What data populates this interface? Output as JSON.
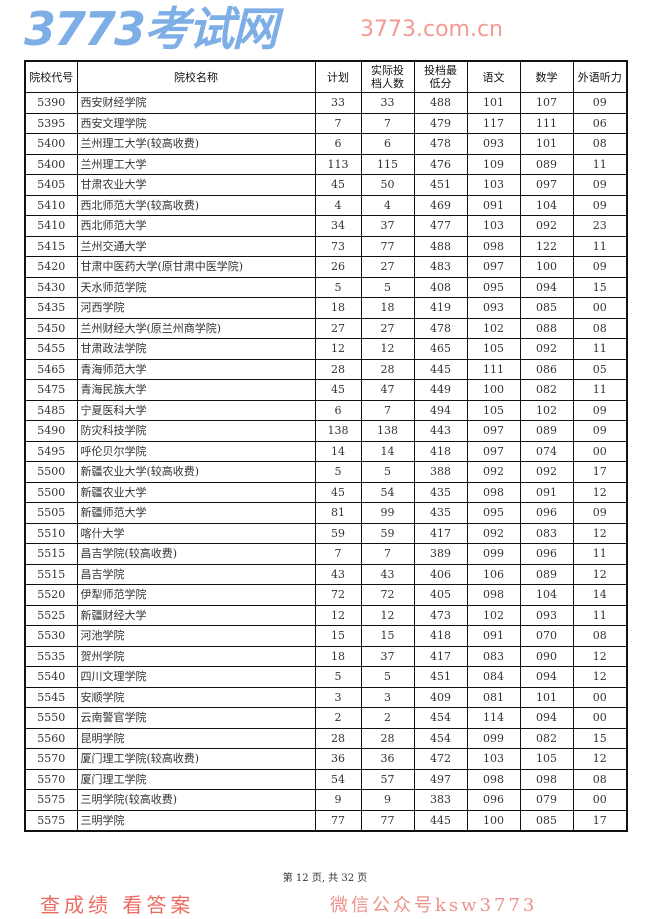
{
  "table": {
    "headers": [
      "院校代号",
      "院校名称",
      "计划",
      "实际投档人数",
      "投档最低分",
      "语文",
      "数学",
      "外语听力"
    ],
    "rows": [
      [
        "5390",
        "西安财经学院",
        "33",
        "33",
        "488",
        "101",
        "107",
        "09"
      ],
      [
        "5395",
        "西安文理学院",
        "7",
        "7",
        "479",
        "117",
        "111",
        "06"
      ],
      [
        "5400",
        "兰州理工大学(较高收费)",
        "6",
        "6",
        "478",
        "093",
        "101",
        "08"
      ],
      [
        "5400",
        "兰州理工大学",
        "113",
        "115",
        "476",
        "109",
        "089",
        "11"
      ],
      [
        "5405",
        "甘肃农业大学",
        "45",
        "50",
        "451",
        "103",
        "097",
        "09"
      ],
      [
        "5410",
        "西北师范大学(较高收费)",
        "4",
        "4",
        "469",
        "091",
        "104",
        "09"
      ],
      [
        "5410",
        "西北师范大学",
        "34",
        "37",
        "477",
        "103",
        "092",
        "23"
      ],
      [
        "5415",
        "兰州交通大学",
        "73",
        "77",
        "488",
        "098",
        "122",
        "11"
      ],
      [
        "5420",
        "甘肃中医药大学(原甘肃中医学院)",
        "26",
        "27",
        "483",
        "097",
        "100",
        "09"
      ],
      [
        "5430",
        "天水师范学院",
        "5",
        "5",
        "408",
        "095",
        "094",
        "15"
      ],
      [
        "5435",
        "河西学院",
        "18",
        "18",
        "419",
        "093",
        "085",
        "00"
      ],
      [
        "5450",
        "兰州财经大学(原兰州商学院)",
        "27",
        "27",
        "478",
        "102",
        "088",
        "08"
      ],
      [
        "5455",
        "甘肃政法学院",
        "12",
        "12",
        "465",
        "105",
        "092",
        "11"
      ],
      [
        "5465",
        "青海师范大学",
        "28",
        "28",
        "445",
        "111",
        "086",
        "05"
      ],
      [
        "5475",
        "青海民族大学",
        "45",
        "47",
        "449",
        "100",
        "082",
        "11"
      ],
      [
        "5485",
        "宁夏医科大学",
        "6",
        "7",
        "494",
        "105",
        "102",
        "09"
      ],
      [
        "5490",
        "防灾科技学院",
        "138",
        "138",
        "443",
        "097",
        "089",
        "09"
      ],
      [
        "5495",
        "呼伦贝尔学院",
        "14",
        "14",
        "418",
        "097",
        "074",
        "00"
      ],
      [
        "5500",
        "新疆农业大学(较高收费)",
        "5",
        "5",
        "388",
        "092",
        "092",
        "17"
      ],
      [
        "5500",
        "新疆农业大学",
        "45",
        "54",
        "435",
        "098",
        "091",
        "12"
      ],
      [
        "5505",
        "新疆师范大学",
        "81",
        "99",
        "435",
        "095",
        "096",
        "09"
      ],
      [
        "5510",
        "喀什大学",
        "59",
        "59",
        "417",
        "092",
        "083",
        "12"
      ],
      [
        "5515",
        "昌吉学院(较高收费)",
        "7",
        "7",
        "389",
        "099",
        "096",
        "11"
      ],
      [
        "5515",
        "昌吉学院",
        "43",
        "43",
        "406",
        "106",
        "089",
        "12"
      ],
      [
        "5520",
        "伊犁师范学院",
        "72",
        "72",
        "405",
        "098",
        "104",
        "14"
      ],
      [
        "5525",
        "新疆财经大学",
        "12",
        "12",
        "473",
        "102",
        "093",
        "11"
      ],
      [
        "5530",
        "河池学院",
        "15",
        "15",
        "418",
        "091",
        "070",
        "08"
      ],
      [
        "5535",
        "贺州学院",
        "18",
        "37",
        "417",
        "083",
        "090",
        "12"
      ],
      [
        "5540",
        "四川文理学院",
        "5",
        "5",
        "451",
        "084",
        "094",
        "12"
      ],
      [
        "5545",
        "安顺学院",
        "3",
        "3",
        "409",
        "081",
        "101",
        "00"
      ],
      [
        "5550",
        "云南警官学院",
        "2",
        "2",
        "454",
        "114",
        "094",
        "00"
      ],
      [
        "5560",
        "昆明学院",
        "28",
        "28",
        "454",
        "099",
        "082",
        "15"
      ],
      [
        "5570",
        "厦门理工学院(较高收费)",
        "36",
        "36",
        "472",
        "103",
        "105",
        "12"
      ],
      [
        "5570",
        "厦门理工学院",
        "54",
        "57",
        "497",
        "098",
        "098",
        "08"
      ],
      [
        "5575",
        "三明学院(较高收费)",
        "9",
        "9",
        "383",
        "096",
        "079",
        "00"
      ],
      [
        "5575",
        "三明学院",
        "77",
        "77",
        "445",
        "100",
        "085",
        "17"
      ]
    ]
  },
  "footer": "第 12 页, 共 32 页",
  "watermark": {
    "logo": "3773考试网",
    "url": "3773.com.cn",
    "slogan": "查成绩 看答案",
    "wechat": "微信公众号ksw3773"
  }
}
